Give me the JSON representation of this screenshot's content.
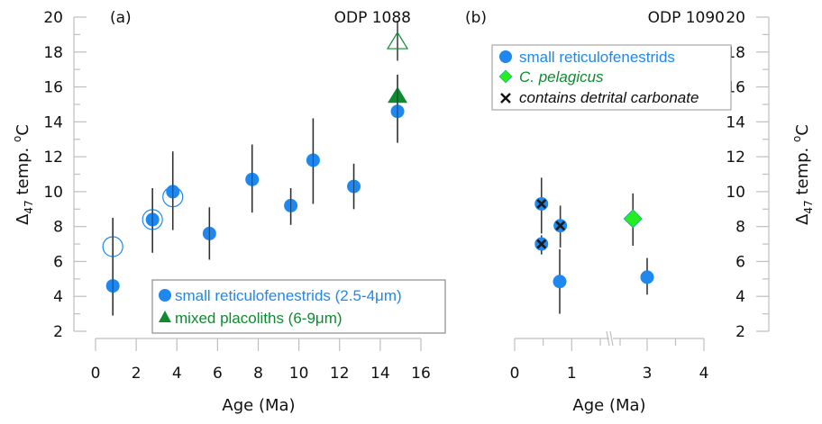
{
  "chart_data": [
    {
      "type": "scatter",
      "panel_label": "(a)",
      "title": "ODP 1088",
      "xlabel": "Age (Ma)",
      "ylabel": "Δ47 temp. °C",
      "xlim": [
        0,
        16
      ],
      "ylim": [
        2,
        20
      ],
      "xticks": [
        "0",
        "2",
        "4",
        "6",
        "8",
        "10",
        "12",
        "14",
        "16"
      ],
      "xtick_values": [
        0,
        2,
        4,
        6,
        8,
        10,
        12,
        14,
        16
      ],
      "yticks": [
        "2",
        "4",
        "6",
        "8",
        "10",
        "12",
        "14",
        "16",
        "18",
        "20"
      ],
      "ytick_values": [
        2,
        4,
        6,
        8,
        10,
        12,
        14,
        16,
        18,
        20
      ],
      "y_axis_side": "left",
      "legend": {
        "placement": "bottom-right",
        "entries": [
          {
            "label": "small reticulofenestrids (2.5-4μm)",
            "marker": "circle",
            "color": "#1e88f0"
          },
          {
            "label": "mixed placoliths (6-9μm)",
            "marker": "triangle",
            "color": "#0f8a30"
          }
        ]
      },
      "series": [
        {
          "name": "small reticulofenestrids (2.5-4μm)",
          "marker": "circle",
          "filled": true,
          "color": "#1e88f0",
          "points": [
            {
              "x": 0.85,
              "y": 4.6,
              "ylo": 2.9,
              "yhi": 8.5
            },
            {
              "x": 2.8,
              "y": 8.4,
              "ylo": 6.5,
              "yhi": 10.2
            },
            {
              "x": 3.8,
              "y": 10.0,
              "ylo": 7.8,
              "yhi": 12.3
            },
            {
              "x": 5.6,
              "y": 7.6,
              "ylo": 6.1,
              "yhi": 9.1
            },
            {
              "x": 7.7,
              "y": 10.7,
              "ylo": 8.8,
              "yhi": 12.7
            },
            {
              "x": 9.6,
              "y": 9.2,
              "ylo": 8.1,
              "yhi": 10.2
            },
            {
              "x": 10.7,
              "y": 11.8,
              "ylo": 9.3,
              "yhi": 14.2
            },
            {
              "x": 12.7,
              "y": 10.3,
              "ylo": 9.0,
              "yhi": 11.6
            },
            {
              "x": 14.85,
              "y": 14.6,
              "ylo": 12.8,
              "yhi": 16.7
            }
          ]
        },
        {
          "name": "small reticulofenestrids (open)",
          "marker": "circle",
          "filled": false,
          "color": "#1e88f0",
          "points": [
            {
              "x": 0.85,
              "y": 6.85
            },
            {
              "x": 2.8,
              "y": 8.4
            },
            {
              "x": 3.8,
              "y": 9.7
            }
          ]
        },
        {
          "name": "mixed placoliths (6-9μm)",
          "marker": "triangle",
          "filled": true,
          "color": "#0f8a30",
          "points": [
            {
              "x": 14.85,
              "y": 15.4
            }
          ]
        },
        {
          "name": "mixed placoliths (open)",
          "marker": "triangle",
          "filled": false,
          "color": "#0f8a30",
          "points": [
            {
              "x": 14.85,
              "y": 18.5,
              "ylo": 17.5,
              "yhi": 19.8
            }
          ]
        }
      ]
    },
    {
      "type": "scatter",
      "panel_label": "(b)",
      "title": "ODP 1090",
      "xlabel": "Age (Ma)",
      "ylabel": "Δ47 temp. °C",
      "xlim": [
        0,
        4
      ],
      "x_axis_break": "between 1 and 3 (break marks near 1.5)",
      "ylim": [
        2,
        20
      ],
      "xticks": [
        "0",
        "1",
        "3",
        "4"
      ],
      "xtick_values": [
        0,
        1,
        3,
        4
      ],
      "yticks": [
        "2",
        "4",
        "6",
        "8",
        "10",
        "12",
        "14",
        "16",
        "18",
        "20"
      ],
      "ytick_values": [
        2,
        4,
        6,
        8,
        10,
        12,
        14,
        16,
        18,
        20
      ],
      "y_axis_side": "right",
      "legend": {
        "placement": "top-left",
        "entries": [
          {
            "label": "small reticulofenestrids",
            "marker": "circle",
            "color": "#1e88f0",
            "italic": false
          },
          {
            "label": "C. pelagicus",
            "marker": "diamond",
            "color": "#0f8a30",
            "marker_color": "#22ee22",
            "italic": true
          },
          {
            "label": "contains detrital carbonate",
            "marker": "x",
            "color": "#111111",
            "italic": true
          }
        ]
      },
      "series": [
        {
          "name": "small reticulofenestrids",
          "marker": "circle",
          "filled": true,
          "color": "#1e88f0",
          "points": [
            {
              "x": 0.47,
              "y": 9.3,
              "ylo": 7.6,
              "yhi": 10.8,
              "detrital": true
            },
            {
              "x": 0.47,
              "y": 7.0,
              "ylo": 6.4,
              "yhi": 7.5,
              "detrital": true
            },
            {
              "x": 0.8,
              "y": 8.05,
              "ylo": 6.8,
              "yhi": 9.2,
              "detrital": true
            },
            {
              "x": 0.79,
              "y": 4.85,
              "ylo": 3.0,
              "yhi": 6.7,
              "detrital": false
            },
            {
              "x": 3.0,
              "y": 5.1,
              "ylo": 4.1,
              "yhi": 6.2,
              "detrital": false
            }
          ]
        },
        {
          "name": "C. pelagicus",
          "marker": "diamond",
          "filled": true,
          "color": "#22ee22",
          "points": [
            {
              "x": 2.75,
              "y": 8.45,
              "ylo": 6.9,
              "yhi": 9.9
            }
          ]
        }
      ]
    }
  ],
  "labels": {
    "ylabel_delta": "Δ",
    "ylabel_sub": "47",
    "ylabel_rest": " temp. ",
    "ylabel_deg": "o",
    "ylabel_unit": "C"
  }
}
